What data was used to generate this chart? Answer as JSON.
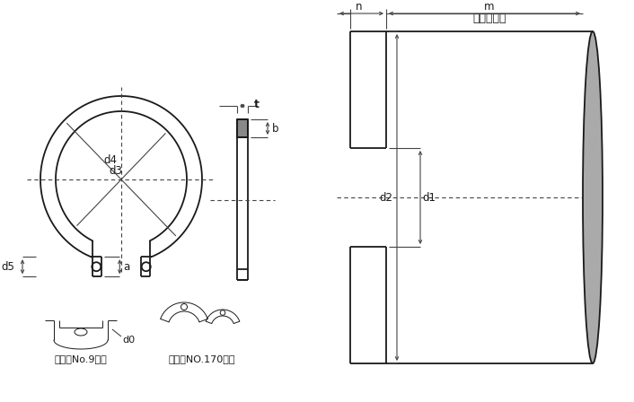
{
  "bg_color": "#ffffff",
  "line_color": "#1a1a1a",
  "dim_color": "#444444",
  "gray_fill": "#aaaaaa",
  "gray_fill2": "#888888",
  "title_text": "適用する軸",
  "label_d4": "d4",
  "label_d3": "d3",
  "label_d5": "d5",
  "label_t": "t",
  "label_b": "b",
  "label_a": "a",
  "label_d1": "d1",
  "label_d2": "d2",
  "label_n": "n",
  "label_m": "m",
  "label_d0": "d0",
  "label_size_small": "サイズNo.9以下",
  "label_size_large": "サイズNO.170以上",
  "figsize": [
    7.06,
    4.48
  ],
  "dpi": 100
}
